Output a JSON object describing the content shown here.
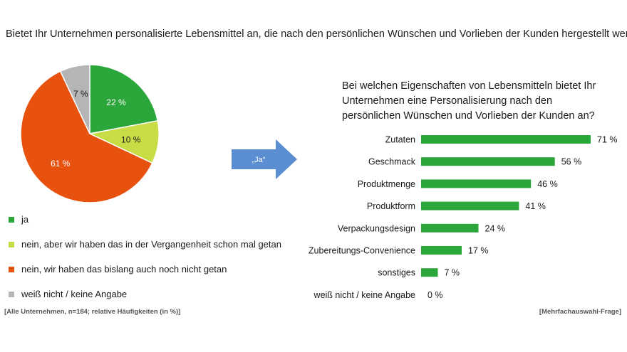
{
  "title": "Bietet Ihr Unternehmen personalisierte Lebensmittel an, die nach den persönlichen Wünschen und Vorlieben der Kunden hergestellt werden?",
  "arrow_label": "„Ja“",
  "footer": {
    "left": "[Alle Unternehmen, n=184; relative Häufigkeiten (in %)]",
    "right": "[Mehrfachauswahl-Frage]"
  },
  "chart_data": [
    {
      "type": "pie",
      "slices": [
        {
          "label": "ja",
          "value": 22,
          "value_label": "22 %",
          "color": "#2aa63b"
        },
        {
          "label": "nein, aber wir haben das in der Vergangenheit schon mal getan",
          "value": 10,
          "value_label": "10 %",
          "color": "#c8dc46"
        },
        {
          "label": "nein, wir haben das bislang auch noch nicht getan",
          "value": 61,
          "value_label": "61 %",
          "color": "#e8520f"
        },
        {
          "label": "weiß nicht / keine Angabe",
          "value": 7,
          "value_label": "7 %",
          "color": "#b5b5b5"
        }
      ],
      "legend_position": "bottom"
    },
    {
      "type": "bar",
      "orientation": "horizontal",
      "title": "Bei welchen Eigenschaften von Lebensmitteln bietet Ihr Unternehmen eine Personalisierung nach den persönlichen Wünschen und Vorlieben der Kunden an?",
      "categories": [
        "Zutaten",
        "Geschmack",
        "Produktmenge",
        "Produktform",
        "Verpackungsdesign",
        "Zubereitungs-Convenience",
        "sonstiges",
        "weiß nicht / keine Angabe"
      ],
      "values": [
        71,
        56,
        46,
        41,
        24,
        17,
        7,
        0
      ],
      "value_labels": [
        "71 %",
        "56 %",
        "46 %",
        "41 %",
        "24 %",
        "17 %",
        "7 %",
        "0 %"
      ],
      "color": "#2aa63b",
      "xlim": [
        0,
        71
      ],
      "grid": false
    }
  ]
}
